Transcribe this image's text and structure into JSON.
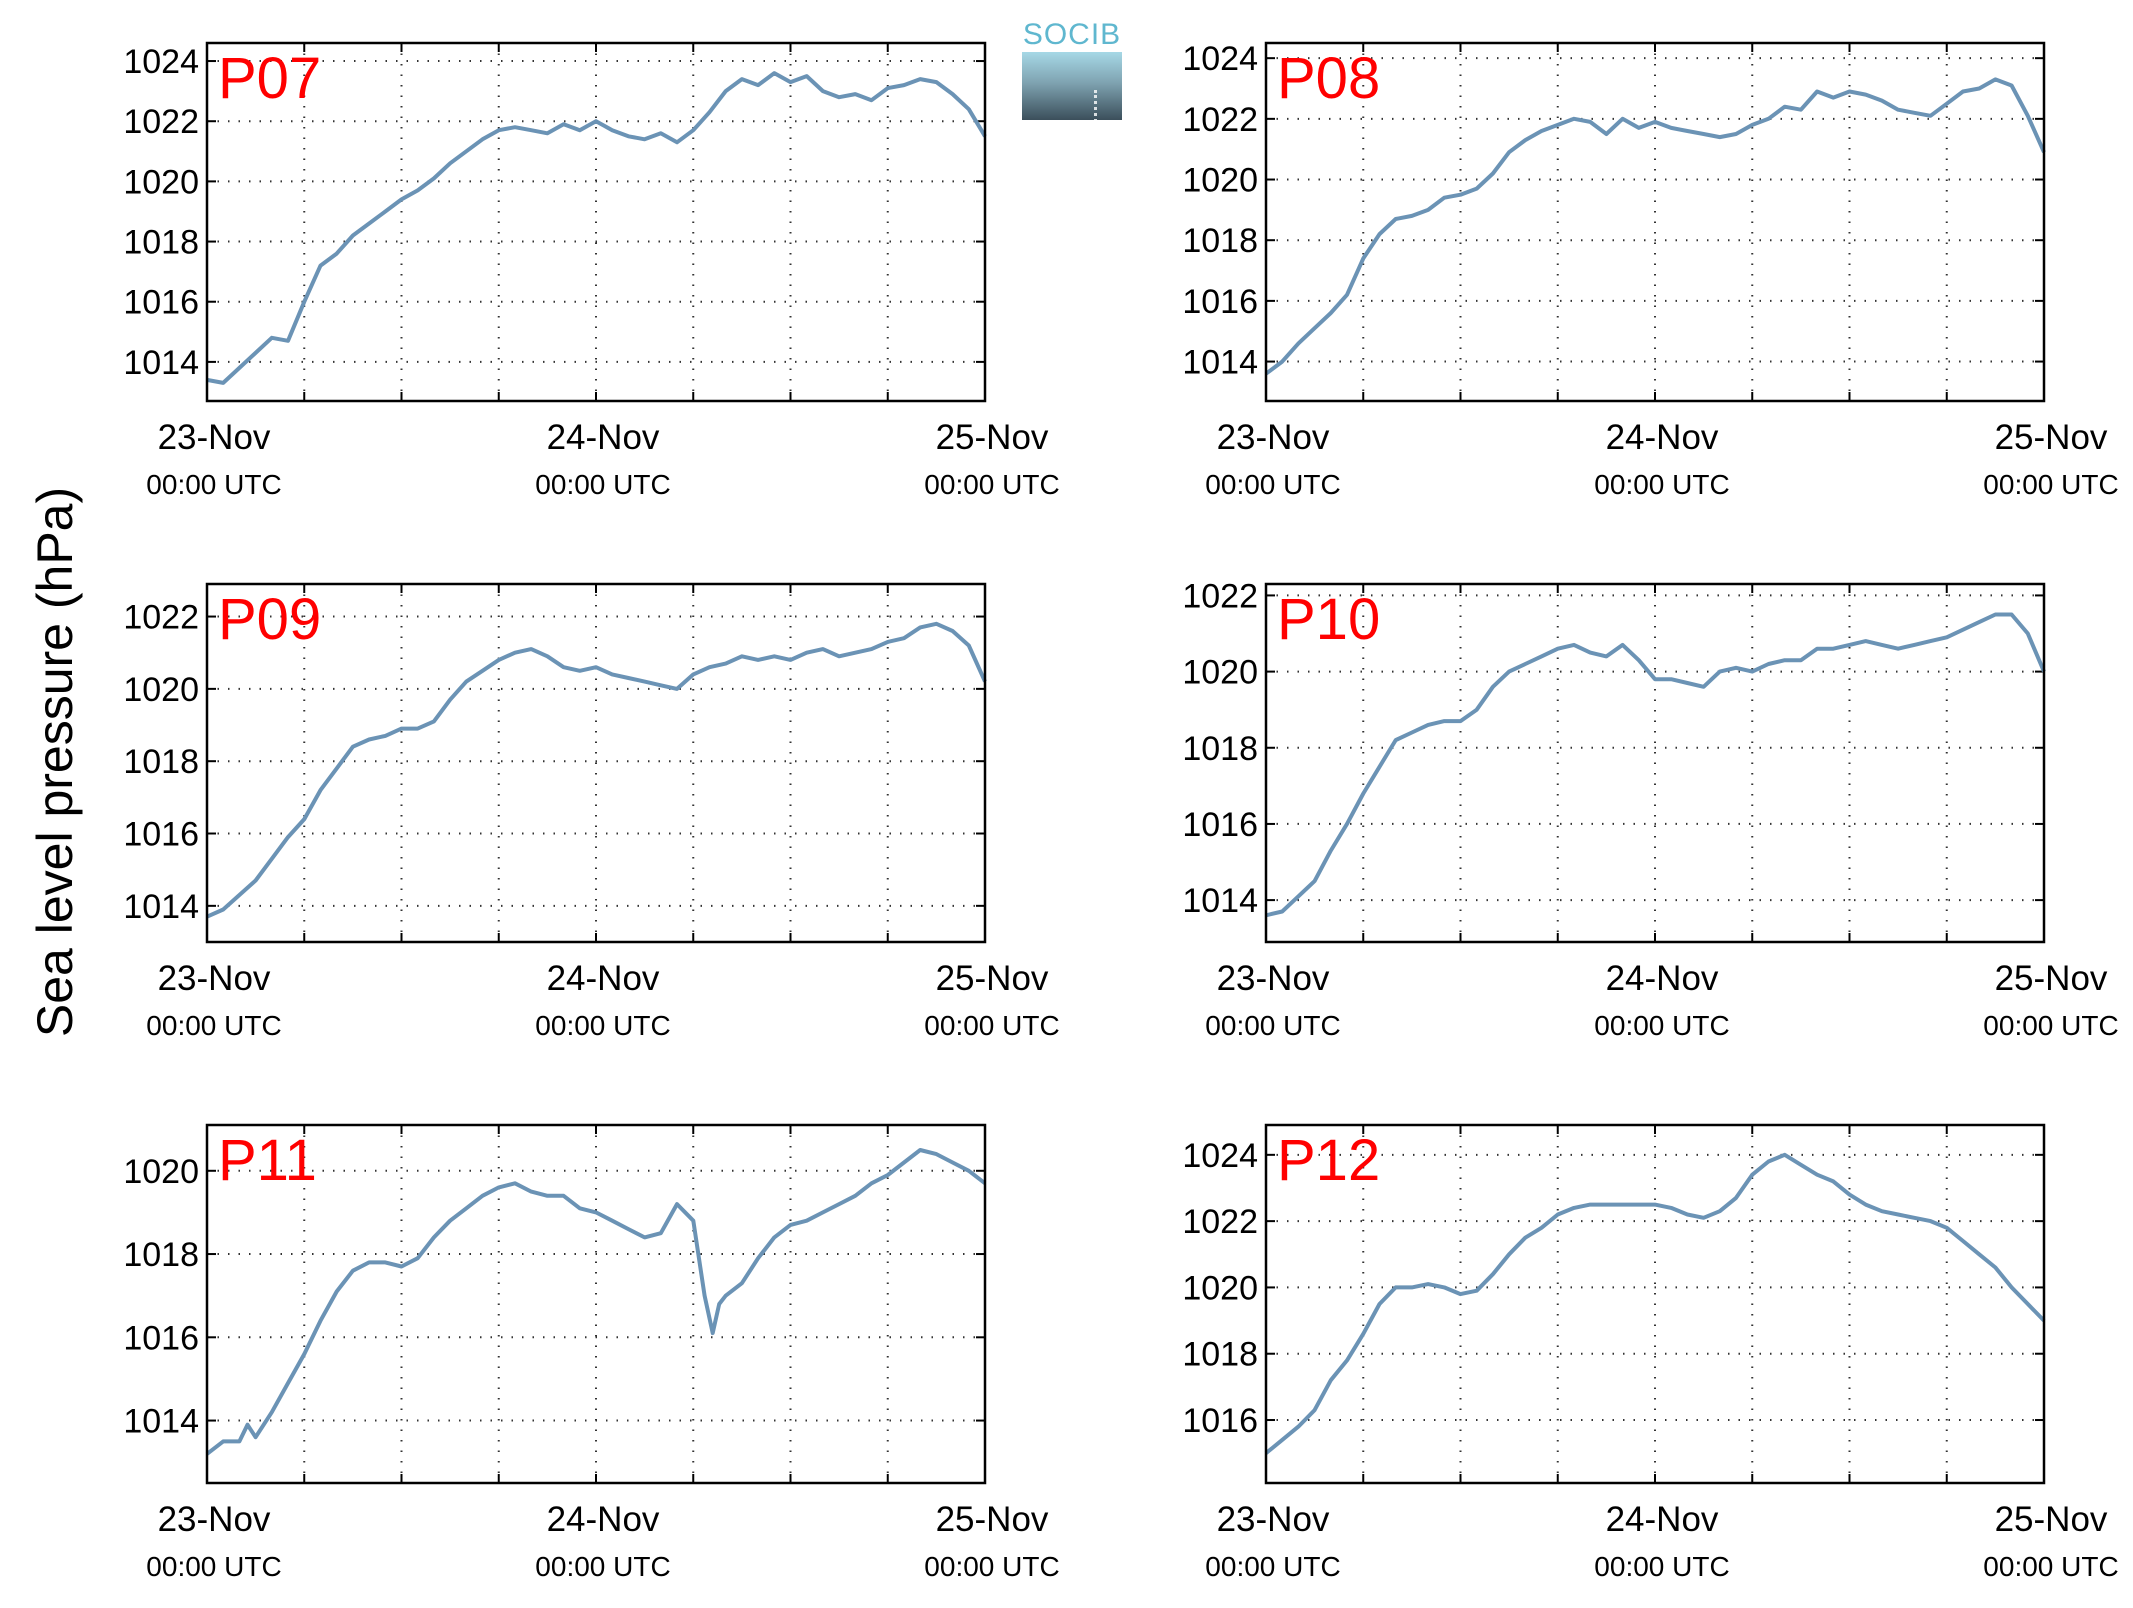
{
  "figure": {
    "ylabel": "Sea level pressure (hPa)",
    "logo_text": "SOCIB"
  },
  "colors": {
    "line": "#6b93b5",
    "panel_label": "#ff0000",
    "grid": "#333333",
    "axes": "#000000"
  },
  "chart_data": [
    {
      "type": "line",
      "title": "P07",
      "xlim": [
        0,
        48
      ],
      "ylim": [
        1012.7,
        1024.6
      ],
      "yticks": [
        1014,
        1016,
        1018,
        1020,
        1022,
        1024
      ],
      "xticks": [
        {
          "x": 0,
          "date": "23-Nov",
          "time": "00:00 UTC"
        },
        {
          "x": 24,
          "date": "24-Nov",
          "time": "00:00 UTC"
        },
        {
          "x": 48,
          "date": "25-Nov",
          "time": "00:00 UTC"
        }
      ],
      "grid": true,
      "x": [
        0,
        1,
        2,
        3,
        4,
        5,
        6,
        7,
        8,
        9,
        10,
        11,
        12,
        13,
        14,
        15,
        16,
        17,
        18,
        19,
        20,
        21,
        22,
        23,
        24,
        25,
        26,
        27,
        28,
        29,
        30,
        31,
        32,
        33,
        34,
        35,
        36,
        37,
        38,
        39,
        40,
        41,
        42,
        43,
        44,
        45,
        46,
        47,
        48
      ],
      "y": [
        1013.4,
        1013.3,
        1013.8,
        1014.3,
        1014.8,
        1014.7,
        1016.0,
        1017.2,
        1017.6,
        1018.2,
        1018.6,
        1019.0,
        1019.4,
        1019.7,
        1020.1,
        1020.6,
        1021.0,
        1021.4,
        1021.7,
        1021.8,
        1021.7,
        1021.6,
        1021.9,
        1021.7,
        1022.0,
        1021.7,
        1021.5,
        1021.4,
        1021.6,
        1021.3,
        1021.7,
        1022.3,
        1023.0,
        1023.4,
        1023.2,
        1023.6,
        1023.3,
        1023.5,
        1023.0,
        1022.8,
        1022.9,
        1022.7,
        1023.1,
        1023.2,
        1023.4,
        1023.3,
        1022.9,
        1022.4,
        1021.5
      ]
    },
    {
      "type": "line",
      "title": "P08",
      "xlim": [
        0,
        48
      ],
      "ylim": [
        1012.7,
        1024.5
      ],
      "yticks": [
        1014,
        1016,
        1018,
        1020,
        1022,
        1024
      ],
      "xticks": [
        {
          "x": 0,
          "date": "23-Nov",
          "time": "00:00 UTC"
        },
        {
          "x": 24,
          "date": "24-Nov",
          "time": "00:00 UTC"
        },
        {
          "x": 48,
          "date": "25-Nov",
          "time": "00:00 UTC"
        }
      ],
      "grid": true,
      "x": [
        0,
        1,
        2,
        3,
        4,
        5,
        6,
        7,
        8,
        9,
        10,
        11,
        12,
        13,
        14,
        15,
        16,
        17,
        18,
        19,
        20,
        21,
        22,
        23,
        24,
        25,
        26,
        27,
        28,
        29,
        30,
        31,
        32,
        33,
        34,
        35,
        36,
        37,
        38,
        39,
        40,
        41,
        42,
        43,
        44,
        45,
        46,
        47,
        48
      ],
      "y": [
        1013.6,
        1014.0,
        1014.6,
        1015.1,
        1015.6,
        1016.2,
        1017.4,
        1018.2,
        1018.7,
        1018.8,
        1019.0,
        1019.4,
        1019.5,
        1019.7,
        1020.2,
        1020.9,
        1021.3,
        1021.6,
        1021.8,
        1022.0,
        1021.9,
        1021.5,
        1022.0,
        1021.7,
        1021.9,
        1021.7,
        1021.6,
        1021.5,
        1021.4,
        1021.5,
        1021.8,
        1022.0,
        1022.4,
        1022.3,
        1022.9,
        1022.7,
        1022.9,
        1022.8,
        1022.6,
        1022.3,
        1022.2,
        1022.1,
        1022.5,
        1022.9,
        1023.0,
        1023.3,
        1023.1,
        1022.1,
        1020.9
      ]
    },
    {
      "type": "line",
      "title": "P09",
      "xlim": [
        0,
        48
      ],
      "ylim": [
        1013.0,
        1022.9
      ],
      "yticks": [
        1014,
        1016,
        1018,
        1020,
        1022
      ],
      "xticks": [
        {
          "x": 0,
          "date": "23-Nov",
          "time": "00:00 UTC"
        },
        {
          "x": 24,
          "date": "24-Nov",
          "time": "00:00 UTC"
        },
        {
          "x": 48,
          "date": "25-Nov",
          "time": "00:00 UTC"
        }
      ],
      "grid": true,
      "x": [
        0,
        1,
        2,
        3,
        4,
        5,
        6,
        7,
        8,
        9,
        10,
        11,
        12,
        13,
        14,
        15,
        16,
        17,
        18,
        19,
        20,
        21,
        22,
        23,
        24,
        25,
        26,
        27,
        28,
        29,
        30,
        31,
        32,
        33,
        34,
        35,
        36,
        37,
        38,
        39,
        40,
        41,
        42,
        43,
        44,
        45,
        46,
        47,
        48
      ],
      "y": [
        1013.7,
        1013.9,
        1014.3,
        1014.7,
        1015.3,
        1015.9,
        1016.4,
        1017.2,
        1017.8,
        1018.4,
        1018.6,
        1018.7,
        1018.9,
        1018.9,
        1019.1,
        1019.7,
        1020.2,
        1020.5,
        1020.8,
        1021.0,
        1021.1,
        1020.9,
        1020.6,
        1020.5,
        1020.6,
        1020.4,
        1020.3,
        1020.2,
        1020.1,
        1020.0,
        1020.4,
        1020.6,
        1020.7,
        1020.9,
        1020.8,
        1020.9,
        1020.8,
        1021.0,
        1021.1,
        1020.9,
        1021.0,
        1021.1,
        1021.3,
        1021.4,
        1021.7,
        1021.8,
        1021.6,
        1021.2,
        1020.2
      ]
    },
    {
      "type": "line",
      "title": "P10",
      "xlim": [
        0,
        48
      ],
      "ylim": [
        1012.9,
        1022.3
      ],
      "yticks": [
        1014,
        1016,
        1018,
        1020,
        1022
      ],
      "xticks": [
        {
          "x": 0,
          "date": "23-Nov",
          "time": "00:00 UTC"
        },
        {
          "x": 24,
          "date": "24-Nov",
          "time": "00:00 UTC"
        },
        {
          "x": 48,
          "date": "25-Nov",
          "time": "00:00 UTC"
        }
      ],
      "grid": true,
      "x": [
        0,
        1,
        2,
        3,
        4,
        5,
        6,
        7,
        8,
        9,
        10,
        11,
        12,
        13,
        14,
        15,
        16,
        17,
        18,
        19,
        20,
        21,
        22,
        23,
        24,
        25,
        26,
        27,
        28,
        29,
        30,
        31,
        32,
        33,
        34,
        35,
        36,
        37,
        38,
        39,
        40,
        41,
        42,
        43,
        44,
        45,
        46,
        47,
        48
      ],
      "y": [
        1013.6,
        1013.7,
        1014.1,
        1014.5,
        1015.3,
        1016.0,
        1016.8,
        1017.5,
        1018.2,
        1018.4,
        1018.6,
        1018.7,
        1018.7,
        1019.0,
        1019.6,
        1020.0,
        1020.2,
        1020.4,
        1020.6,
        1020.7,
        1020.5,
        1020.4,
        1020.7,
        1020.3,
        1019.8,
        1019.8,
        1019.7,
        1019.6,
        1020.0,
        1020.1,
        1020.0,
        1020.2,
        1020.3,
        1020.3,
        1020.6,
        1020.6,
        1020.7,
        1020.8,
        1020.7,
        1020.6,
        1020.7,
        1020.8,
        1020.9,
        1021.1,
        1021.3,
        1021.5,
        1021.5,
        1021.0,
        1020.0
      ]
    },
    {
      "type": "line",
      "title": "P11",
      "xlim": [
        0,
        48
      ],
      "ylim": [
        1012.5,
        1021.1
      ],
      "yticks": [
        1014,
        1016,
        1018,
        1020
      ],
      "xticks": [
        {
          "x": 0,
          "date": "23-Nov",
          "time": "00:00 UTC"
        },
        {
          "x": 24,
          "date": "24-Nov",
          "time": "00:00 UTC"
        },
        {
          "x": 48,
          "date": "25-Nov",
          "time": "00:00 UTC"
        }
      ],
      "grid": true,
      "x": [
        0,
        1,
        2,
        2.5,
        3,
        4,
        5,
        6,
        7,
        8,
        9,
        10,
        11,
        12,
        13,
        14,
        15,
        16,
        17,
        18,
        19,
        20,
        21,
        22,
        23,
        24,
        25,
        26,
        27,
        28,
        29,
        30,
        30.7,
        31.2,
        31.6,
        32,
        33,
        34,
        35,
        36,
        37,
        38,
        39,
        40,
        41,
        42,
        43,
        44,
        45,
        46,
        47,
        48
      ],
      "y": [
        1013.2,
        1013.5,
        1013.5,
        1013.9,
        1013.6,
        1014.2,
        1014.9,
        1015.6,
        1016.4,
        1017.1,
        1017.6,
        1017.8,
        1017.8,
        1017.7,
        1017.9,
        1018.4,
        1018.8,
        1019.1,
        1019.4,
        1019.6,
        1019.7,
        1019.5,
        1019.4,
        1019.4,
        1019.1,
        1019.0,
        1018.8,
        1018.6,
        1018.4,
        1018.5,
        1019.2,
        1018.8,
        1017.0,
        1016.1,
        1016.8,
        1017.0,
        1017.3,
        1017.9,
        1018.4,
        1018.7,
        1018.8,
        1019.0,
        1019.2,
        1019.4,
        1019.7,
        1019.9,
        1020.2,
        1020.5,
        1020.4,
        1020.2,
        1020.0,
        1019.7
      ]
    },
    {
      "type": "line",
      "title": "P12",
      "xlim": [
        0,
        48
      ],
      "ylim": [
        1014.1,
        1024.9
      ],
      "yticks": [
        1016,
        1018,
        1020,
        1022,
        1024
      ],
      "xticks": [
        {
          "x": 0,
          "date": "23-Nov",
          "time": "00:00 UTC"
        },
        {
          "x": 24,
          "date": "24-Nov",
          "time": "00:00 UTC"
        },
        {
          "x": 48,
          "date": "25-Nov",
          "time": "00:00 UTC"
        }
      ],
      "grid": true,
      "x": [
        0,
        1,
        2,
        3,
        4,
        5,
        6,
        7,
        8,
        9,
        10,
        11,
        12,
        13,
        14,
        15,
        16,
        17,
        18,
        19,
        20,
        21,
        22,
        23,
        24,
        25,
        26,
        27,
        28,
        29,
        30,
        31,
        32,
        33,
        34,
        35,
        36,
        37,
        38,
        39,
        40,
        41,
        42,
        43,
        44,
        45,
        46,
        47,
        48
      ],
      "y": [
        1015.0,
        1015.4,
        1015.8,
        1016.3,
        1017.2,
        1017.8,
        1018.6,
        1019.5,
        1020.0,
        1020.0,
        1020.1,
        1020.0,
        1019.8,
        1019.9,
        1020.4,
        1021.0,
        1021.5,
        1021.8,
        1022.2,
        1022.4,
        1022.5,
        1022.5,
        1022.5,
        1022.5,
        1022.5,
        1022.4,
        1022.2,
        1022.1,
        1022.3,
        1022.7,
        1023.4,
        1023.8,
        1024.0,
        1023.7,
        1023.4,
        1023.2,
        1022.8,
        1022.5,
        1022.3,
        1022.2,
        1022.1,
        1022.0,
        1021.8,
        1021.4,
        1021.0,
        1020.6,
        1020.0,
        1019.5,
        1019.0
      ]
    }
  ]
}
